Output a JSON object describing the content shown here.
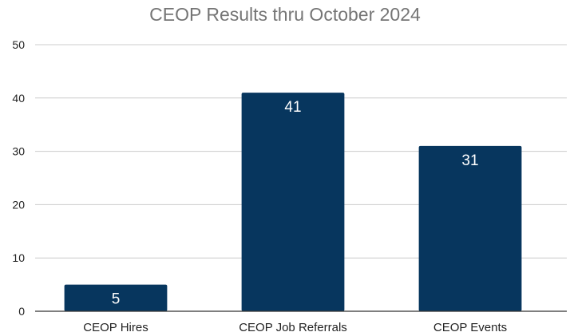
{
  "chart_data": {
    "type": "bar",
    "title": "CEOP Results thru October 2024",
    "categories": [
      "CEOP Hires",
      "CEOP Job Referrals",
      "CEOP Events"
    ],
    "values": [
      5,
      41,
      31
    ],
    "data_labels": [
      "5",
      "41",
      "31"
    ],
    "xlabel": "",
    "ylabel": "",
    "ylim": [
      0,
      50
    ],
    "yticks": [
      0,
      10,
      20,
      30,
      40,
      50
    ],
    "ytick_labels": [
      "0",
      "10",
      "20",
      "30",
      "40",
      "50"
    ],
    "grid": true,
    "legend": "none",
    "colors": {
      "bar": "#07365e",
      "grid": "#cccccc",
      "axis": "#333333",
      "title": "#757575",
      "data_label": "#ffffff"
    }
  }
}
